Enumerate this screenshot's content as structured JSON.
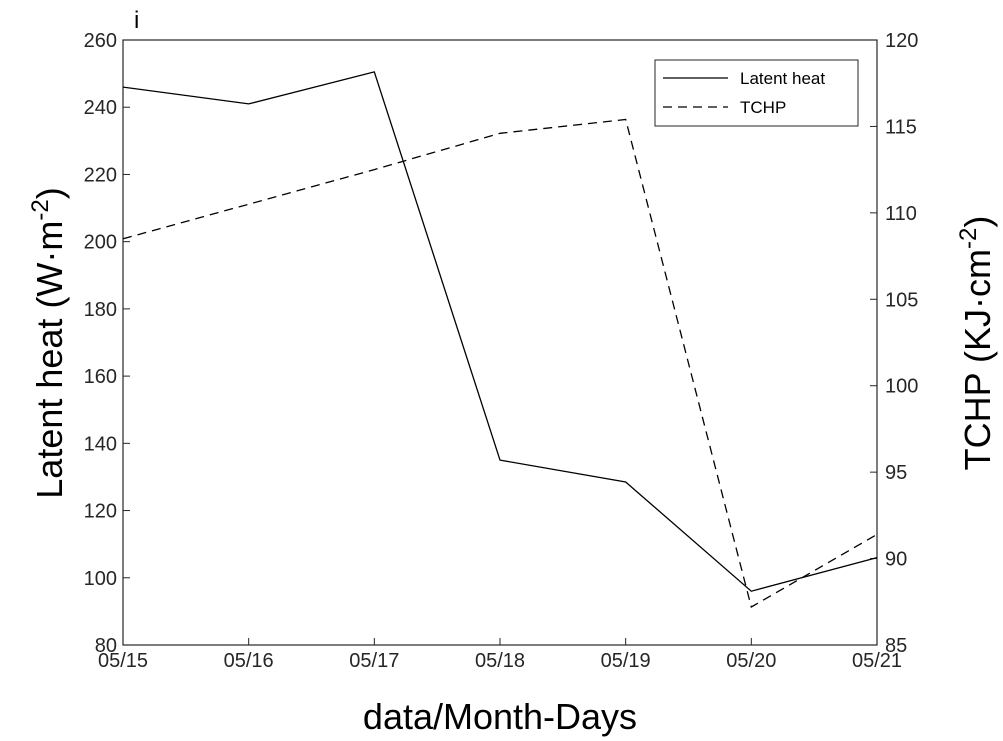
{
  "panel_label": "i",
  "chart_data": {
    "type": "line",
    "categories": [
      "05/15",
      "05/16",
      "05/17",
      "05/18",
      "05/19",
      "05/20",
      "05/21"
    ],
    "xlabel": "data/Month-Days",
    "ylabel_left": {
      "base": "Latent heat (W·m",
      "sup": "-2",
      "close": ")"
    },
    "ylabel_right": {
      "base": "TCHP (KJ·cm",
      "sup": "-2",
      "close": ")"
    },
    "ylim_left": [
      80,
      260
    ],
    "yticks_left": [
      80,
      100,
      120,
      140,
      160,
      180,
      200,
      220,
      240,
      260
    ],
    "ylim_right": [
      85,
      120
    ],
    "yticks_right": [
      85,
      90,
      95,
      100,
      105,
      110,
      115,
      120
    ],
    "grid": false,
    "legend_position": "top-right",
    "series": [
      {
        "name": "Latent heat",
        "axis": "left",
        "style": "solid",
        "color": "#000000",
        "values": [
          246,
          241,
          250.5,
          135,
          128.5,
          96,
          106
        ]
      },
      {
        "name": "TCHP",
        "axis": "right",
        "style": "dashed",
        "color": "#000000",
        "values": [
          108.5,
          110.5,
          112.5,
          114.6,
          115.4,
          87.2,
          91.4
        ]
      }
    ]
  }
}
